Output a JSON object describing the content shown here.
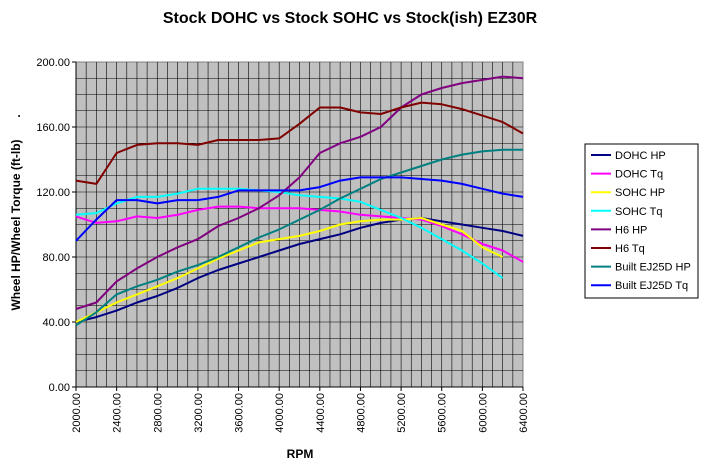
{
  "chart_data": {
    "type": "line",
    "title": "Stock DOHC vs Stock SOHC vs Stock(ish) EZ30R",
    "xlabel": "RPM",
    "ylabel": "Wheel HP/Wheel Torque (ft-lb)",
    "ylabel_prefix": ".",
    "xlim": [
      2000,
      6400
    ],
    "ylim": [
      0,
      200
    ],
    "x_ticks": [
      2000,
      2400,
      2800,
      3200,
      3600,
      4000,
      4400,
      4800,
      5200,
      5600,
      6000,
      6400
    ],
    "x_tick_labels": [
      "2000.00",
      "2400.00",
      "2800.00",
      "3200.00",
      "3600.00",
      "4000.00",
      "4400.00",
      "4800.00",
      "5200.00",
      "5600.00",
      "6000.00",
      "6400.00"
    ],
    "y_ticks": [
      0,
      40,
      80,
      120,
      160,
      200
    ],
    "y_tick_labels": [
      "0.00",
      "40.00",
      "80.00",
      "120.00",
      "160.00",
      "200.00"
    ],
    "grid": true,
    "plot_background": "#c0c0c0",
    "legend_position": "right",
    "series": [
      {
        "name": "DOHC HP",
        "color": "#000080",
        "x": [
          2000,
          2200,
          2400,
          2600,
          2800,
          3000,
          3200,
          3400,
          3600,
          3800,
          4000,
          4200,
          4400,
          4600,
          4800,
          5000,
          5200,
          5400,
          5600,
          5800,
          6000,
          6200,
          6400
        ],
        "y": [
          40,
          43,
          47,
          52,
          56,
          61,
          67,
          72,
          76,
          80,
          84,
          88,
          91,
          94,
          98,
          101,
          103,
          104,
          102,
          100,
          98,
          96,
          93
        ]
      },
      {
        "name": "DOHC Tq",
        "color": "#ff00ff",
        "x": [
          2000,
          2200,
          2400,
          2600,
          2800,
          3000,
          3200,
          3400,
          3600,
          3800,
          4000,
          4200,
          4400,
          4600,
          4800,
          5000,
          5200,
          5400,
          5600,
          5800,
          6000,
          6200,
          6400
        ],
        "y": [
          105,
          101,
          102,
          105,
          104,
          106,
          109,
          111,
          111,
          110,
          110,
          110,
          109,
          108,
          106,
          105,
          104,
          103,
          99,
          94,
          88,
          84,
          77
        ]
      },
      {
        "name": "SOHC HP",
        "color": "#ffff00",
        "x": [
          2000,
          2200,
          2400,
          2600,
          2800,
          3000,
          3200,
          3400,
          3600,
          3800,
          4000,
          4200,
          4400,
          4600,
          4800,
          5000,
          5200,
          5400,
          5600,
          5800,
          6000,
          6200
        ],
        "y": [
          40,
          46,
          52,
          57,
          62,
          67,
          73,
          79,
          84,
          89,
          91,
          93,
          96,
          100,
          102,
          103,
          103,
          104,
          100,
          96,
          86,
          80
        ]
      },
      {
        "name": "SOHC Tq",
        "color": "#00ffff",
        "x": [
          2000,
          2200,
          2400,
          2600,
          2800,
          3000,
          3200,
          3400,
          3600,
          3800,
          4000,
          4200,
          4400,
          4600,
          4800,
          5000,
          5200,
          5400,
          5600,
          5800,
          6000,
          6200
        ],
        "y": [
          106,
          107,
          113,
          117,
          117,
          119,
          122,
          122,
          122,
          121,
          120,
          118,
          117,
          116,
          114,
          109,
          104,
          98,
          91,
          84,
          76,
          67
        ]
      },
      {
        "name": "H6 HP",
        "color": "#800080",
        "x": [
          2000,
          2200,
          2400,
          2600,
          2800,
          3000,
          3200,
          3400,
          3600,
          3800,
          4000,
          4200,
          4400,
          4600,
          4800,
          5000,
          5200,
          5400,
          5600,
          5800,
          6000,
          6200,
          6400
        ],
        "y": [
          48,
          52,
          65,
          73,
          80,
          86,
          91,
          99,
          104,
          110,
          118,
          129,
          144,
          150,
          154,
          160,
          172,
          180,
          184,
          187,
          189,
          191,
          190
        ]
      },
      {
        "name": "H6 Tq",
        "color": "#800000",
        "x": [
          2000,
          2200,
          2400,
          2600,
          2800,
          3000,
          3200,
          3400,
          3600,
          3800,
          4000,
          4200,
          4400,
          4600,
          4800,
          5000,
          5200,
          5400,
          5600,
          5800,
          6000,
          6200,
          6400
        ],
        "y": [
          127,
          125,
          144,
          149,
          150,
          150,
          149,
          152,
          152,
          152,
          153,
          162,
          172,
          172,
          169,
          168,
          172,
          175,
          174,
          171,
          167,
          163,
          156
        ]
      },
      {
        "name": "Built EJ25D HP",
        "color": "#008080",
        "x": [
          2000,
          2200,
          2400,
          2600,
          2800,
          3000,
          3200,
          3400,
          3600,
          3800,
          4000,
          4200,
          4400,
          4600,
          4800,
          5000,
          5200,
          5400,
          5600,
          5800,
          6000,
          6200,
          6400
        ],
        "y": [
          38,
          46,
          57,
          62,
          66,
          71,
          75,
          80,
          86,
          92,
          97,
          103,
          109,
          116,
          122,
          128,
          132,
          136,
          140,
          143,
          145,
          146,
          146
        ]
      },
      {
        "name": "Built EJ25D Tq",
        "color": "#0000ff",
        "x": [
          2000,
          2200,
          2400,
          2600,
          2800,
          3000,
          3200,
          3400,
          3600,
          3800,
          4000,
          4200,
          4400,
          4600,
          4800,
          5000,
          5200,
          5400,
          5600,
          5800,
          6000,
          6200,
          6400
        ],
        "y": [
          90,
          103,
          115,
          115,
          113,
          115,
          115,
          117,
          121,
          121,
          121,
          121,
          123,
          127,
          129,
          129,
          129,
          128,
          127,
          125,
          122,
          119,
          117
        ]
      }
    ]
  }
}
